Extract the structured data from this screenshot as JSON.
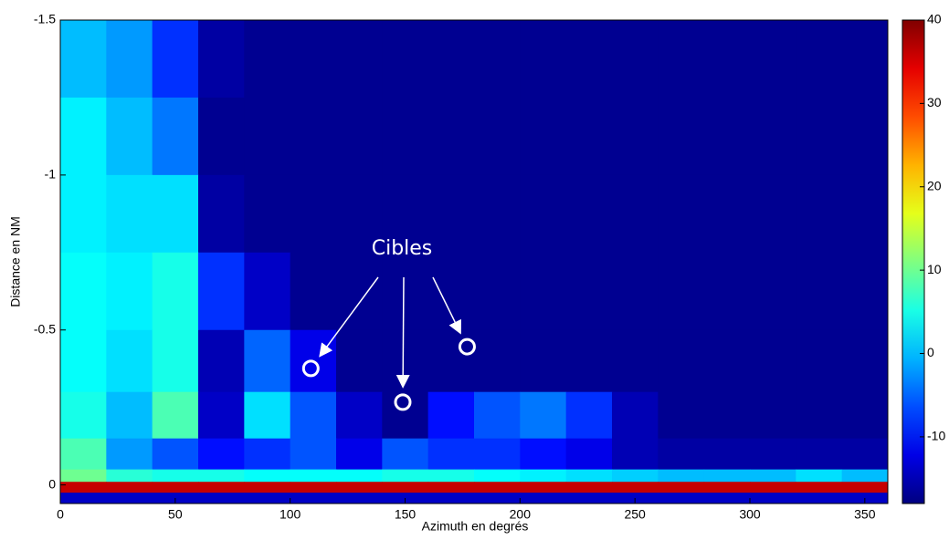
{
  "chart_data": {
    "type": "heatmap",
    "x_label": "Azimuth en degrés",
    "y_label": "Distance en NM",
    "xlim": [
      0,
      360
    ],
    "xticks": [
      0,
      50,
      100,
      150,
      200,
      250,
      300,
      350
    ],
    "ylim": [
      -1.5,
      0.06
    ],
    "y_inverted": true,
    "yticks": [
      -1.5,
      -1,
      -0.5,
      0
    ],
    "x_bins": [
      0,
      20,
      40,
      60,
      80,
      100,
      120,
      140,
      160,
      180,
      200,
      220,
      240,
      260,
      280,
      300,
      320,
      340,
      360
    ],
    "y_bins": [
      -1.5,
      -1.25,
      -1,
      -0.75,
      -0.5,
      -0.3,
      -0.15,
      -0.05,
      -0.01,
      0.025,
      0.06
    ],
    "z": [
      [
        0,
        -2,
        -8,
        -16,
        -17,
        -17,
        -17,
        -17,
        -17,
        -17,
        -17,
        -17,
        -17,
        -17,
        -17,
        -17,
        -17,
        -17
      ],
      [
        3,
        0,
        -4,
        -17,
        -17,
        -17,
        -17,
        -17,
        -17,
        -17,
        -17,
        -17,
        -17,
        -17,
        -17,
        -17,
        -17,
        -17
      ],
      [
        3,
        2,
        2,
        -16,
        -17,
        -17,
        -17,
        -17,
        -17,
        -17,
        -17,
        -17,
        -17,
        -17,
        -17,
        -17,
        -17,
        -17
      ],
      [
        4,
        3,
        5,
        -8,
        -14,
        -17,
        -17,
        -17,
        -17,
        -17,
        -17,
        -17,
        -17,
        -17,
        -17,
        -17,
        -17,
        -17
      ],
      [
        4,
        2,
        5,
        -15,
        -5,
        -12,
        -17,
        -17,
        -17,
        -17,
        -17,
        -17,
        -17,
        -17,
        -17,
        -17,
        -17,
        -17
      ],
      [
        5,
        0,
        8,
        -14,
        2,
        -6,
        -14,
        -17,
        -10,
        -6,
        -4,
        -8,
        -15,
        -17,
        -17,
        -17,
        -17,
        -17
      ],
      [
        8,
        -2,
        -6,
        -10,
        -8,
        -6,
        -12,
        -6,
        -8,
        -8,
        -10,
        -12,
        -15,
        -16,
        -16,
        -16,
        -16,
        -16
      ],
      [
        10,
        6,
        5,
        5,
        4,
        4,
        4,
        5,
        5,
        4,
        3,
        2,
        1,
        0,
        0,
        0,
        2,
        0
      ],
      [
        36,
        36,
        36,
        36,
        36,
        36,
        36,
        36,
        36,
        36,
        36,
        36,
        36,
        36,
        36,
        36,
        36,
        36
      ],
      [
        -14,
        -14,
        -14,
        -14,
        -14,
        -14,
        -14,
        -14,
        -14,
        -14,
        -14,
        -14,
        -14,
        -14,
        -14,
        -14,
        -14,
        -14
      ]
    ],
    "clim": [
      -18,
      40
    ],
    "cticks": [
      -10,
      0,
      10,
      20,
      30,
      40
    ],
    "colormap": "jet",
    "annotation": "Cibles",
    "targets": [
      {
        "x": 109,
        "y": -0.376
      },
      {
        "x": 149,
        "y": -0.267
      },
      {
        "x": 177,
        "y": -0.446
      }
    ]
  }
}
